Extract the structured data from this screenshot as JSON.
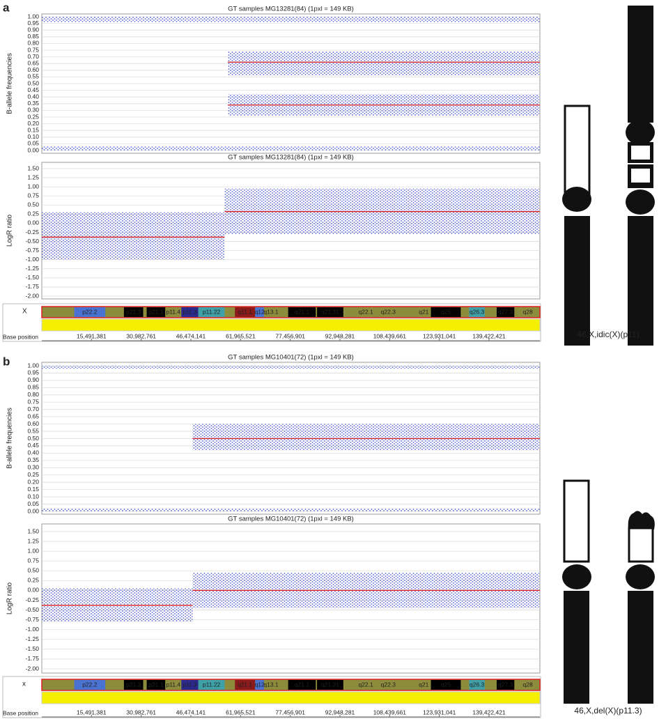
{
  "panels": [
    {
      "label": "a",
      "chromosome": "X",
      "karyotype": "46,X,idic(X)(p11)"
    },
    {
      "label": "b",
      "chromosome": "x",
      "karyotype": "46,X,del(X)(p11.3)"
    }
  ],
  "base_axis": {
    "label": "Base position",
    "xlim": [
      0,
      155270560
    ],
    "xticks": [
      {
        "value": 15491381,
        "label": "15,491,381"
      },
      {
        "value": 30982761,
        "label": "30,982,761"
      },
      {
        "value": 46474141,
        "label": "46,474,141"
      },
      {
        "value": 61965521,
        "label": "61,965,521"
      },
      {
        "value": 77456901,
        "label": "77,456,901"
      },
      {
        "value": 92948281,
        "label": "92,948,281"
      },
      {
        "value": 108439661,
        "label": "108,439,661"
      },
      {
        "value": 123931041,
        "label": "123,931,041"
      },
      {
        "value": 139422421,
        "label": "139,422,421"
      }
    ]
  },
  "ideogram": {
    "bands": [
      {
        "label": "p22.2",
        "start": 10100000,
        "end": 19800000,
        "color": "#4a72d0"
      },
      {
        "label": "p21.3",
        "start": 25600000,
        "end": 31600000,
        "color": "#000000"
      },
      {
        "label": "p21.1",
        "start": 32700000,
        "end": 38500000,
        "color": "#000000"
      },
      {
        "label": "p11.4",
        "start": 38500000,
        "end": 43500000,
        "color": "#8c8c3c"
      },
      {
        "label": "p11.3",
        "start": 43500000,
        "end": 48800000,
        "color": "#2a2a8c"
      },
      {
        "label": "p11.22",
        "start": 48800000,
        "end": 57000000,
        "color": "#3fa0a8"
      },
      {
        "label": "q11.1",
        "start": 60200000,
        "end": 66500000,
        "color": "#8b1a1a"
      },
      {
        "label": "q12",
        "start": 66500000,
        "end": 69300000,
        "color": "#4a72d0"
      },
      {
        "label": "q13.1",
        "start": 69300000,
        "end": 73600000,
        "color": "#8c8c3c"
      },
      {
        "label": "q21.1",
        "start": 76800000,
        "end": 85400000,
        "color": "#000000"
      },
      {
        "label": "q21.31",
        "start": 85800000,
        "end": 94000000,
        "color": "#000000"
      },
      {
        "label": "q22.1",
        "start": 98300000,
        "end": 103700000,
        "color": "#8c8c3c"
      },
      {
        "label": "q22.3",
        "start": 104800000,
        "end": 111200000,
        "color": "#8c8c3c"
      },
      {
        "label": "q21",
        "start": 117200000,
        "end": 120900000,
        "color": "#8c8c3c"
      },
      {
        "label": "q25",
        "start": 121300000,
        "end": 130600000,
        "color": "#000000"
      },
      {
        "label": "q26.3",
        "start": 133200000,
        "end": 138100000,
        "color": "#3fa0a8"
      },
      {
        "label": "q27.3",
        "start": 141800000,
        "end": 147300000,
        "color": "#000000"
      },
      {
        "label": "q28",
        "start": 148800000,
        "end": 154200000,
        "color": "#8c8c3c"
      }
    ]
  },
  "chart_data": [
    {
      "type": "scatter",
      "title": "GT samples MG13281(84) (1pxl = 149 KB)",
      "y_label": "B-allele frequencies",
      "point_color": "#2b3fc0",
      "line_color": "#e02020",
      "grid": true,
      "xlim": [
        0,
        155270560
      ],
      "ylim": [
        0,
        1
      ],
      "yticks": [
        {
          "value": 0,
          "label": "0.00"
        },
        {
          "value": 0.05,
          "label": "0.05"
        },
        {
          "value": 0.1,
          "label": "0.10"
        },
        {
          "value": 0.15,
          "label": "0.15"
        },
        {
          "value": 0.2,
          "label": "0.20"
        },
        {
          "value": 0.25,
          "label": "0.25"
        },
        {
          "value": 0.3,
          "label": "0.30"
        },
        {
          "value": 0.35,
          "label": "0.35"
        },
        {
          "value": 0.4,
          "label": "0.40"
        },
        {
          "value": 0.45,
          "label": "0.45"
        },
        {
          "value": 0.5,
          "label": "0.50"
        },
        {
          "value": 0.55,
          "label": "0.55"
        },
        {
          "value": 0.6,
          "label": "0.60"
        },
        {
          "value": 0.65,
          "label": "0.65"
        },
        {
          "value": 0.7,
          "label": "0.70"
        },
        {
          "value": 0.75,
          "label": "0.75"
        },
        {
          "value": 0.8,
          "label": "0.80"
        },
        {
          "value": 0.85,
          "label": "0.85"
        },
        {
          "value": 0.9,
          "label": "0.90"
        },
        {
          "value": 0.95,
          "label": "0.95"
        },
        {
          "value": 1,
          "label": "1.00"
        }
      ],
      "clouds": [
        {
          "x": [
            0,
            155270560
          ],
          "y": [
            0,
            0.03
          ]
        },
        {
          "x": [
            0,
            155270560
          ],
          "y": [
            0.96,
            1
          ]
        },
        {
          "x": [
            58000000,
            155000000
          ],
          "y": [
            0.56,
            0.74
          ]
        },
        {
          "x": [
            58000000,
            155000000
          ],
          "y": [
            0.26,
            0.42
          ]
        }
      ],
      "segments": [
        {
          "x": [
            58000000,
            155270560
          ],
          "y": 0.66
        },
        {
          "x": [
            58000000,
            155270560
          ],
          "y": 0.34
        }
      ]
    },
    {
      "type": "scatter",
      "title": "GT samples MG13281(84) (1pxl = 149 KB)",
      "y_label": "LogR ratio",
      "point_color": "#2b3fc0",
      "line_color": "#e02020",
      "grid": true,
      "xlim": [
        0,
        155270560
      ],
      "ylim": [
        -2,
        1.5
      ],
      "yticks": [
        {
          "value": -2,
          "label": "-2.00"
        },
        {
          "value": -1.75,
          "label": "-1.75"
        },
        {
          "value": -1.5,
          "label": "-1.50"
        },
        {
          "value": -1.25,
          "label": "-1.25"
        },
        {
          "value": -1,
          "label": "-1.00"
        },
        {
          "value": -0.75,
          "label": "-0.75"
        },
        {
          "value": -0.5,
          "label": "-0.50"
        },
        {
          "value": -0.25,
          "label": "-0.25"
        },
        {
          "value": 0,
          "label": "0.00"
        },
        {
          "value": 0.25,
          "label": "0.25"
        },
        {
          "value": 0.5,
          "label": "0.50"
        },
        {
          "value": 0.75,
          "label": "0.75"
        },
        {
          "value": 1,
          "label": "1.00"
        },
        {
          "value": 1.25,
          "label": "1.25"
        },
        {
          "value": 1.5,
          "label": "1.50"
        }
      ],
      "clouds": [
        {
          "x": [
            0,
            57000000
          ],
          "y": [
            -1,
            0.3
          ]
        },
        {
          "x": [
            57000000,
            155000000
          ],
          "y": [
            -0.3,
            0.95
          ]
        }
      ],
      "segments": [
        {
          "x": [
            0,
            57000000
          ],
          "y": -0.38
        },
        {
          "x": [
            57000000,
            155270560
          ],
          "y": 0.32
        }
      ]
    },
    {
      "type": "scatter",
      "title": "GT samples MG10401(72) (1pxl = 149 KB)",
      "y_label": "B-allele frequencies",
      "point_color": "#2b3fc0",
      "line_color": "#e02020",
      "grid": true,
      "xlim": [
        0,
        155270560
      ],
      "ylim": [
        0,
        1
      ],
      "yticks": [
        {
          "value": 0,
          "label": "0.00"
        },
        {
          "value": 0.05,
          "label": "0.05"
        },
        {
          "value": 0.1,
          "label": "0.10"
        },
        {
          "value": 0.15,
          "label": "0.15"
        },
        {
          "value": 0.2,
          "label": "0.20"
        },
        {
          "value": 0.25,
          "label": "0.25"
        },
        {
          "value": 0.3,
          "label": "0.30"
        },
        {
          "value": 0.35,
          "label": "0.35"
        },
        {
          "value": 0.4,
          "label": "0.40"
        },
        {
          "value": 0.45,
          "label": "0.45"
        },
        {
          "value": 0.5,
          "label": "0.50"
        },
        {
          "value": 0.55,
          "label": "0.55"
        },
        {
          "value": 0.6,
          "label": "0.60"
        },
        {
          "value": 0.65,
          "label": "0.65"
        },
        {
          "value": 0.7,
          "label": "0.70"
        },
        {
          "value": 0.75,
          "label": "0.75"
        },
        {
          "value": 0.8,
          "label": "0.80"
        },
        {
          "value": 0.85,
          "label": "0.85"
        },
        {
          "value": 0.9,
          "label": "0.90"
        },
        {
          "value": 0.95,
          "label": "0.95"
        },
        {
          "value": 1,
          "label": "1.00"
        }
      ],
      "clouds": [
        {
          "x": [
            0,
            155270560
          ],
          "y": [
            0,
            0.02
          ]
        },
        {
          "x": [
            0,
            155270560
          ],
          "y": [
            0.98,
            1
          ]
        },
        {
          "x": [
            47000000,
            155000000
          ],
          "y": [
            0.42,
            0.6
          ]
        }
      ],
      "segments": [
        {
          "x": [
            47000000,
            155270560
          ],
          "y": 0.5
        }
      ]
    },
    {
      "type": "scatter",
      "title": "GT samples MG10401(72) (1pxl = 149 KB)",
      "y_label": "LogR ratio",
      "point_color": "#2b3fc0",
      "line_color": "#e02020",
      "grid": true,
      "xlim": [
        0,
        155270560
      ],
      "ylim": [
        -2,
        1.5
      ],
      "yticks": [
        {
          "value": -2,
          "label": "-2.00"
        },
        {
          "value": -1.75,
          "label": "-1.75"
        },
        {
          "value": -1.5,
          "label": "-1.50"
        },
        {
          "value": -1.25,
          "label": "-1.25"
        },
        {
          "value": -1,
          "label": "-1.00"
        },
        {
          "value": -0.75,
          "label": "-0.75"
        },
        {
          "value": -0.5,
          "label": "-0.50"
        },
        {
          "value": -0.25,
          "label": "-0.25"
        },
        {
          "value": 0,
          "label": "0.00"
        },
        {
          "value": 0.25,
          "label": "0.25"
        },
        {
          "value": 0.5,
          "label": "0.50"
        },
        {
          "value": 0.75,
          "label": "0.75"
        },
        {
          "value": 1,
          "label": "1.00"
        },
        {
          "value": 1.25,
          "label": "1.25"
        },
        {
          "value": 1.5,
          "label": "1.50"
        }
      ],
      "clouds": [
        {
          "x": [
            0,
            47000000
          ],
          "y": [
            -0.8,
            0.05
          ]
        },
        {
          "x": [
            47000000,
            155000000
          ],
          "y": [
            -0.45,
            0.45
          ]
        }
      ],
      "segments": [
        {
          "x": [
            0,
            47000000
          ],
          "y": -0.38
        },
        {
          "x": [
            47000000,
            155270560
          ],
          "y": 0
        }
      ]
    }
  ]
}
